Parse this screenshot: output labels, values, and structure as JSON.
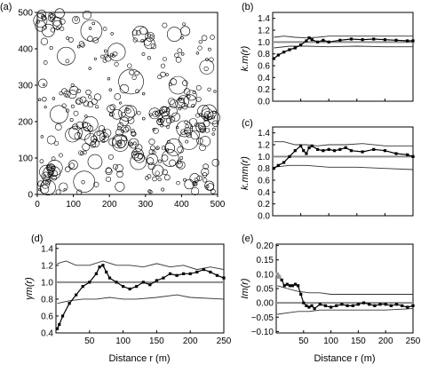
{
  "chart_data": [
    {
      "id": "a",
      "type": "scatter",
      "panel_label": "(a)",
      "x_ticks": [
        "0",
        "100",
        "200",
        "300",
        "400",
        "500"
      ],
      "y_ticks": [
        "0",
        "100",
        "200",
        "300",
        "400",
        "500"
      ],
      "xlim": [
        0,
        500
      ],
      "ylim": [
        0,
        500
      ]
    },
    {
      "id": "b",
      "type": "line",
      "panel_label": "(b)",
      "ylabel": "k.m(r)",
      "y_ticks": [
        "0.0",
        "0.2",
        "0.4",
        "0.6",
        "0.8",
        "1.0",
        "1.2",
        "1.4"
      ],
      "x_ticks": [],
      "xlim": [
        0,
        250
      ],
      "ylim": [
        0,
        1.5
      ],
      "reference": 1.0,
      "envelope_upper": [
        [
          2,
          1.08
        ],
        [
          20,
          1.1
        ],
        [
          40,
          1.08
        ],
        [
          60,
          1.07
        ],
        [
          80,
          1.08
        ],
        [
          100,
          1.1
        ],
        [
          130,
          1.1
        ],
        [
          160,
          1.1
        ],
        [
          200,
          1.1
        ],
        [
          250,
          1.1
        ]
      ],
      "envelope_lower": [
        [
          2,
          0.9
        ],
        [
          30,
          0.93
        ],
        [
          60,
          0.93
        ],
        [
          100,
          0.92
        ],
        [
          150,
          0.93
        ],
        [
          200,
          0.92
        ],
        [
          250,
          0.92
        ]
      ],
      "observed": [
        [
          2,
          0.72
        ],
        [
          10,
          0.78
        ],
        [
          20,
          0.83
        ],
        [
          30,
          0.87
        ],
        [
          40,
          0.9
        ],
        [
          50,
          0.95
        ],
        [
          60,
          1.02
        ],
        [
          65,
          1.07
        ],
        [
          70,
          1.04
        ],
        [
          80,
          1.0
        ],
        [
          90,
          1.03
        ],
        [
          100,
          1.0
        ],
        [
          120,
          1.03
        ],
        [
          140,
          1.05
        ],
        [
          160,
          1.04
        ],
        [
          180,
          1.05
        ],
        [
          200,
          1.04
        ],
        [
          220,
          1.03
        ],
        [
          240,
          1.02
        ],
        [
          250,
          1.02
        ]
      ]
    },
    {
      "id": "c",
      "type": "line",
      "panel_label": "(c)",
      "ylabel": "k.mm(r)",
      "y_ticks": [
        "0.0",
        "0.2",
        "0.4",
        "0.6",
        "0.8",
        "1.0",
        "1.2",
        "1.4"
      ],
      "x_ticks": [],
      "xlim": [
        0,
        250
      ],
      "ylim": [
        0,
        1.5
      ],
      "reference": 1.0,
      "envelope_upper": [
        [
          2,
          1.25
        ],
        [
          20,
          1.25
        ],
        [
          40,
          1.2
        ],
        [
          60,
          1.2
        ],
        [
          80,
          1.18
        ],
        [
          100,
          1.2
        ],
        [
          130,
          1.2
        ],
        [
          160,
          1.22
        ],
        [
          200,
          1.18
        ],
        [
          230,
          1.18
        ],
        [
          250,
          1.18
        ]
      ],
      "envelope_lower": [
        [
          2,
          0.82
        ],
        [
          30,
          0.85
        ],
        [
          60,
          0.85
        ],
        [
          100,
          0.82
        ],
        [
          150,
          0.82
        ],
        [
          200,
          0.8
        ],
        [
          250,
          0.78
        ]
      ],
      "observed": [
        [
          2,
          0.8
        ],
        [
          10,
          0.85
        ],
        [
          20,
          0.9
        ],
        [
          30,
          1.0
        ],
        [
          40,
          1.1
        ],
        [
          50,
          1.18
        ],
        [
          55,
          1.1
        ],
        [
          60,
          1.05
        ],
        [
          65,
          1.15
        ],
        [
          70,
          1.18
        ],
        [
          80,
          1.12
        ],
        [
          90,
          1.1
        ],
        [
          100,
          1.12
        ],
        [
          110,
          1.1
        ],
        [
          120,
          1.12
        ],
        [
          130,
          1.15
        ],
        [
          140,
          1.1
        ],
        [
          160,
          1.08
        ],
        [
          180,
          1.12
        ],
        [
          200,
          1.1
        ],
        [
          220,
          1.05
        ],
        [
          240,
          1.03
        ],
        [
          250,
          1.0
        ]
      ]
    },
    {
      "id": "d",
      "type": "line",
      "panel_label": "(d)",
      "ylabel": "γm(r)",
      "xlabel": "Distance r (m)",
      "y_ticks": [
        "0.4",
        "0.6",
        "0.8",
        "1.0",
        "1.2",
        "1.4"
      ],
      "x_ticks": [
        "50",
        "100",
        "150",
        "200",
        "250"
      ],
      "xlim": [
        0,
        250
      ],
      "ylim": [
        0.4,
        1.45
      ],
      "reference": 1.0,
      "envelope_upper": [
        [
          2,
          1.22
        ],
        [
          15,
          1.25
        ],
        [
          30,
          1.2
        ],
        [
          50,
          1.2
        ],
        [
          70,
          1.25
        ],
        [
          90,
          1.2
        ],
        [
          110,
          1.2
        ],
        [
          130,
          1.18
        ],
        [
          150,
          1.22
        ],
        [
          170,
          1.18
        ],
        [
          190,
          1.2
        ],
        [
          210,
          1.15
        ],
        [
          230,
          1.18
        ],
        [
          250,
          1.15
        ]
      ],
      "envelope_lower": [
        [
          2,
          0.75
        ],
        [
          20,
          0.78
        ],
        [
          40,
          0.8
        ],
        [
          60,
          0.8
        ],
        [
          80,
          0.82
        ],
        [
          100,
          0.8
        ],
        [
          120,
          0.8
        ],
        [
          150,
          0.82
        ],
        [
          180,
          0.85
        ],
        [
          200,
          0.82
        ],
        [
          250,
          0.8
        ]
      ],
      "observed": [
        [
          2,
          0.45
        ],
        [
          5,
          0.5
        ],
        [
          10,
          0.6
        ],
        [
          20,
          0.75
        ],
        [
          30,
          0.85
        ],
        [
          40,
          0.95
        ],
        [
          50,
          1.0
        ],
        [
          60,
          1.1
        ],
        [
          65,
          1.18
        ],
        [
          70,
          1.2
        ],
        [
          75,
          1.12
        ],
        [
          80,
          1.05
        ],
        [
          90,
          1.0
        ],
        [
          100,
          0.95
        ],
        [
          110,
          0.92
        ],
        [
          120,
          0.95
        ],
        [
          130,
          1.0
        ],
        [
          140,
          0.97
        ],
        [
          150,
          1.02
        ],
        [
          160,
          1.05
        ],
        [
          170,
          1.1
        ],
        [
          180,
          1.08
        ],
        [
          190,
          1.1
        ],
        [
          200,
          1.1
        ],
        [
          210,
          1.12
        ],
        [
          220,
          1.15
        ],
        [
          230,
          1.12
        ],
        [
          240,
          1.08
        ],
        [
          250,
          1.05
        ]
      ]
    },
    {
      "id": "e",
      "type": "line",
      "panel_label": "(e)",
      "ylabel": "Im(r)",
      "xlabel": "Distance r (m)",
      "y_ticks": [
        "−0.10",
        "−0.05",
        "0.00",
        "0.05",
        "0.10",
        "0.15",
        "0.20"
      ],
      "x_ticks": [
        "50",
        "100",
        "150",
        "200",
        "250"
      ],
      "xlim": [
        0,
        250
      ],
      "ylim": [
        -0.105,
        0.205
      ],
      "reference": 0.0,
      "envelope_upper": [
        [
          2,
          0.06
        ],
        [
          20,
          0.05
        ],
        [
          40,
          0.04
        ],
        [
          60,
          0.035
        ],
        [
          80,
          0.035
        ],
        [
          100,
          0.03
        ],
        [
          150,
          0.03
        ],
        [
          200,
          0.03
        ],
        [
          250,
          0.03
        ]
      ],
      "envelope_lower": [
        [
          2,
          -0.04
        ],
        [
          20,
          -0.035
        ],
        [
          40,
          -0.03
        ],
        [
          60,
          -0.03
        ],
        [
          80,
          -0.025
        ],
        [
          100,
          -0.025
        ],
        [
          150,
          -0.025
        ],
        [
          200,
          -0.025
        ],
        [
          250,
          -0.02
        ]
      ],
      "observed": [
        [
          2,
          0.1
        ],
        [
          5,
          0.09
        ],
        [
          10,
          0.08
        ],
        [
          15,
          0.06
        ],
        [
          20,
          0.065
        ],
        [
          25,
          0.06
        ],
        [
          30,
          0.06
        ],
        [
          35,
          0.065
        ],
        [
          40,
          0.06
        ],
        [
          45,
          0.03
        ],
        [
          50,
          0.0
        ],
        [
          55,
          -0.01
        ],
        [
          60,
          -0.015
        ],
        [
          65,
          -0.01
        ],
        [
          70,
          -0.02
        ],
        [
          80,
          -0.005
        ],
        [
          90,
          -0.01
        ],
        [
          100,
          -0.015
        ],
        [
          110,
          -0.01
        ],
        [
          120,
          -0.005
        ],
        [
          130,
          -0.01
        ],
        [
          140,
          -0.01
        ],
        [
          150,
          -0.005
        ],
        [
          160,
          0.0
        ],
        [
          170,
          -0.005
        ],
        [
          180,
          -0.01
        ],
        [
          190,
          -0.005
        ],
        [
          200,
          -0.005
        ],
        [
          210,
          -0.01
        ],
        [
          220,
          -0.005
        ],
        [
          230,
          -0.01
        ],
        [
          240,
          -0.015
        ],
        [
          250,
          -0.01
        ]
      ],
      "observed_gray": [
        [
          2,
          0.1
        ],
        [
          4,
          0.095
        ],
        [
          6,
          0.09
        ]
      ]
    }
  ]
}
